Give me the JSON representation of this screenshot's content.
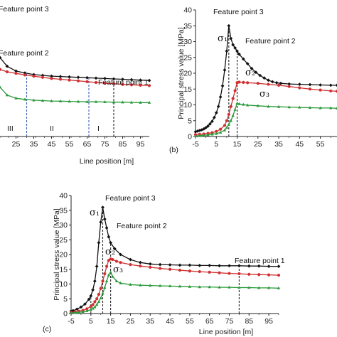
{
  "chart_data": [
    {
      "panel": "a",
      "type": "line",
      "xlabel": "Line position [m]",
      "x_ticks_visible": [
        "25",
        "35",
        "45",
        "55",
        "65",
        "75",
        "85",
        "95"
      ],
      "xlim": [
        16,
        100
      ],
      "ylim": [
        0,
        40
      ],
      "grid": false,
      "annotations": [
        {
          "text": "Feature point 3"
        },
        {
          "text": "Feature point 2"
        },
        {
          "text": "Feature point 1"
        }
      ],
      "region_labels": [
        "III",
        "II",
        "I"
      ],
      "dashed_lines_x": [
        31,
        66,
        80
      ],
      "series": [
        {
          "name": "σ1",
          "color": "#111111",
          "x": [
            16,
            20,
            25,
            30,
            35,
            40,
            45,
            50,
            55,
            60,
            65,
            70,
            75,
            80,
            85,
            90,
            95,
            100
          ],
          "values": [
            20,
            17.8,
            16.6,
            16.1,
            15.7,
            15.5,
            15.3,
            15.2,
            15.1,
            15.0,
            14.9,
            14.8,
            14.7,
            14.6,
            14.5,
            14.4,
            14.3,
            14.2
          ]
        },
        {
          "name": "σ2",
          "color": "#d03030",
          "x": [
            16,
            20,
            25,
            30,
            35,
            40,
            45,
            50,
            55,
            60,
            65,
            70,
            75,
            80,
            85,
            90,
            95,
            100
          ],
          "values": [
            17,
            16.4,
            16.0,
            15.6,
            15.3,
            15.0,
            14.7,
            14.5,
            14.3,
            14.1,
            13.9,
            13.7,
            13.5,
            13.4,
            13.2,
            13.1,
            13.0,
            12.9
          ]
        },
        {
          "name": "σ3",
          "color": "#2a9a3a",
          "x": [
            16,
            20,
            25,
            30,
            35,
            40,
            45,
            50,
            55,
            60,
            65,
            70,
            75,
            80,
            85,
            90,
            95,
            100
          ],
          "values": [
            12.5,
            10.5,
            9.7,
            9.4,
            9.2,
            9.1,
            9.0,
            8.95,
            8.9,
            8.85,
            8.8,
            8.8,
            8.75,
            8.7,
            8.7,
            8.65,
            8.6,
            8.6
          ]
        }
      ]
    },
    {
      "panel": "b",
      "type": "line",
      "ylabel": "Principal stress value [MPa]",
      "x_ticks": [
        "-5",
        "5",
        "15",
        "25",
        "35",
        "45",
        "55"
      ],
      "y_ticks": [
        "0",
        "5",
        "10",
        "15",
        "20",
        "25",
        "30",
        "35",
        "40"
      ],
      "xlim": [
        -5,
        63
      ],
      "ylim": [
        0,
        40
      ],
      "grid": false,
      "annotations": [
        {
          "text": "Feature point 3"
        },
        {
          "text": "Feature point 2"
        }
      ],
      "sigma_labels": [
        "σ₁",
        "σ₂",
        "σ₃"
      ],
      "dashed_lines_x": [
        11,
        15
      ],
      "series": [
        {
          "name": "σ1",
          "color": "#111111",
          "x": [
            -5,
            -4,
            -3,
            -2,
            -1,
            0,
            1,
            2,
            3,
            4,
            5,
            6,
            7,
            8,
            9,
            10,
            11,
            12,
            13,
            14,
            15,
            16,
            18,
            20,
            22,
            24,
            26,
            28,
            30,
            32,
            34,
            36,
            40,
            45,
            50,
            55,
            60,
            63
          ],
          "values": [
            1.5,
            1.7,
            1.9,
            2.1,
            2.4,
            2.8,
            3.3,
            4.0,
            4.8,
            6.0,
            7.5,
            9.5,
            12.5,
            16,
            21,
            27,
            35,
            31,
            29,
            28,
            27,
            26,
            24.5,
            23,
            21.5,
            20.3,
            19.3,
            18.5,
            17.8,
            17.3,
            17,
            16.8,
            16.6,
            16.5,
            16.4,
            16.3,
            16.2,
            16.2
          ]
        },
        {
          "name": "σ2",
          "color": "#d03030",
          "x": [
            -5,
            -3,
            -1,
            1,
            3,
            5,
            7,
            9,
            10,
            11,
            12,
            13,
            14,
            15,
            16,
            18,
            20,
            25,
            30,
            35,
            40,
            45,
            50,
            55,
            60,
            63
          ],
          "values": [
            0.6,
            0.7,
            0.8,
            1.0,
            1.2,
            1.6,
            2.3,
            3.5,
            5,
            7,
            9.5,
            12,
            14.5,
            17,
            17.2,
            17.1,
            17,
            16.8,
            16.5,
            16.2,
            15.8,
            15.4,
            15.0,
            14.7,
            14.4,
            14.3
          ]
        },
        {
          "name": "σ3",
          "color": "#2a9a3a",
          "x": [
            -5,
            -3,
            -1,
            1,
            3,
            5,
            7,
            9,
            10,
            11,
            12,
            13,
            14,
            15,
            16,
            18,
            20,
            25,
            30,
            35,
            40,
            45,
            50,
            55,
            60,
            63
          ],
          "values": [
            0.2,
            0.3,
            0.4,
            0.5,
            0.7,
            0.9,
            1.3,
            2.0,
            2.8,
            3.8,
            5.0,
            6.6,
            8.5,
            10.5,
            10.3,
            10.1,
            9.9,
            9.7,
            9.5,
            9.4,
            9.3,
            9.2,
            9.1,
            9.0,
            9.0,
            8.9
          ]
        }
      ]
    },
    {
      "panel": "c",
      "type": "line",
      "xlabel": "Line position [m]",
      "ylabel": "Principal stress value [MPa]",
      "x_ticks": [
        "-5",
        "5",
        "15",
        "25",
        "35",
        "45",
        "55",
        "65",
        "75",
        "85",
        "95"
      ],
      "y_ticks": [
        "0",
        "5",
        "10",
        "15",
        "20",
        "25",
        "30",
        "35",
        "40"
      ],
      "xlim": [
        -5,
        100
      ],
      "ylim": [
        0,
        40
      ],
      "grid": false,
      "annotations": [
        {
          "text": "Feature point 3"
        },
        {
          "text": "Feature point 2"
        },
        {
          "text": "Feature point 1"
        }
      ],
      "sigma_labels": [
        "σ₁",
        "σ₂",
        "σ₃"
      ],
      "dashed_lines_x": [
        5,
        11,
        15,
        80
      ],
      "series": [
        {
          "name": "σ1",
          "color": "#111111",
          "x": [
            -5,
            -4,
            -2,
            0,
            2,
            4,
            5,
            6,
            7,
            8,
            9,
            10,
            11,
            12,
            13,
            14,
            15,
            17,
            20,
            25,
            30,
            35,
            40,
            45,
            50,
            55,
            60,
            65,
            70,
            75,
            80,
            85,
            90,
            95,
            100
          ],
          "values": [
            0.8,
            1.0,
            1.5,
            2.2,
            3.2,
            4.8,
            6,
            8,
            11,
            16,
            24,
            31,
            36,
            32,
            29,
            26,
            24,
            22,
            20,
            18.3,
            17.3,
            16.8,
            16.6,
            16.5,
            16.4,
            16.4,
            16.3,
            16.3,
            16.2,
            16.2,
            16.2,
            16.1,
            16.1,
            16.0,
            16.0
          ]
        },
        {
          "name": "σ2",
          "color": "#d03030",
          "x": [
            -5,
            -3,
            -1,
            1,
            3,
            5,
            6,
            7,
            8,
            9,
            10,
            11,
            12,
            13,
            14,
            15,
            16,
            18,
            20,
            25,
            30,
            35,
            40,
            45,
            50,
            55,
            60,
            65,
            70,
            75,
            80,
            85,
            90,
            95,
            100
          ],
          "values": [
            0.4,
            0.6,
            0.8,
            1.1,
            1.6,
            2.4,
            3,
            4,
            5,
            6.5,
            8.5,
            11,
            13.5,
            16,
            18,
            18.5,
            18.3,
            17.7,
            17.3,
            16.6,
            16.1,
            15.7,
            15.3,
            15.0,
            14.7,
            14.4,
            14.2,
            14.0,
            13.8,
            13.6,
            13.5,
            13.3,
            13.2,
            13.1,
            13.0
          ]
        },
        {
          "name": "σ3",
          "color": "#2a9a3a",
          "x": [
            -5,
            -3,
            -1,
            1,
            3,
            5,
            6,
            7,
            8,
            9,
            10,
            11,
            12,
            13,
            14,
            15,
            16,
            18,
            20,
            25,
            30,
            35,
            40,
            45,
            50,
            55,
            60,
            65,
            70,
            75,
            80,
            85,
            90,
            95,
            100
          ],
          "values": [
            0.2,
            0.3,
            0.4,
            0.6,
            0.9,
            1.3,
            1.7,
            2.2,
            3,
            4,
            5.2,
            6.8,
            8.8,
            11,
            13,
            14,
            12.5,
            11,
            10.3,
            9.8,
            9.6,
            9.5,
            9.4,
            9.3,
            9.2,
            9.1,
            9.0,
            9.0,
            8.9,
            8.9,
            8.8,
            8.8,
            8.7,
            8.7,
            8.6
          ]
        }
      ]
    }
  ],
  "panel_labels": {
    "b": "(b)",
    "c": "(c)"
  }
}
